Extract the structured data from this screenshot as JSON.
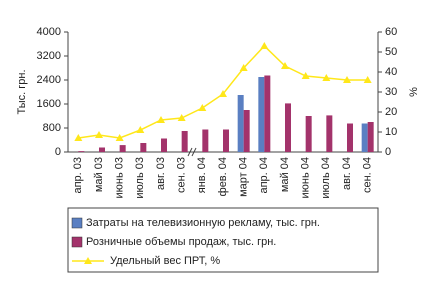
{
  "chart_data": {
    "type": "bar-line",
    "categories": [
      "апр. 03",
      "май 03",
      "июнь 03",
      "июль 03",
      "авг. 03",
      "сен. 03",
      "янв. 04",
      "фев. 04",
      "март 04",
      "апр. 04",
      "май 04",
      "июнь 04",
      "июль 04",
      "авг. 04",
      "сен. 04"
    ],
    "ylabel": "Тыс. грн.",
    "y2label": "%",
    "ylim": [
      0,
      4000
    ],
    "yticks": [
      0,
      800,
      1600,
      2400,
      3200,
      4000
    ],
    "y2lim": [
      0,
      60
    ],
    "y2ticks": [
      0,
      10,
      20,
      30,
      40,
      50,
      60
    ],
    "grid": false,
    "series": [
      {
        "name": "Затраты на телевизионную рекламу, тыс. грн.",
        "type": "bar",
        "color": "#5a7fc2",
        "values": [
          null,
          null,
          null,
          null,
          null,
          null,
          null,
          null,
          1900,
          2500,
          null,
          null,
          null,
          null,
          950
        ]
      },
      {
        "name": "Розничные объемы продаж, тыс. грн.",
        "type": "bar",
        "color": "#a3336b",
        "values": [
          30,
          150,
          230,
          300,
          450,
          700,
          750,
          750,
          1400,
          2550,
          1620,
          1200,
          1220,
          950,
          1000
        ]
      },
      {
        "name": "Удельный вес ПРТ, %",
        "type": "line",
        "axis": "y2",
        "color": "#ffe71a",
        "values": [
          7,
          8.5,
          7,
          11,
          16,
          17,
          22,
          29,
          42,
          53,
          43,
          38,
          37,
          36,
          36
        ]
      }
    ]
  }
}
